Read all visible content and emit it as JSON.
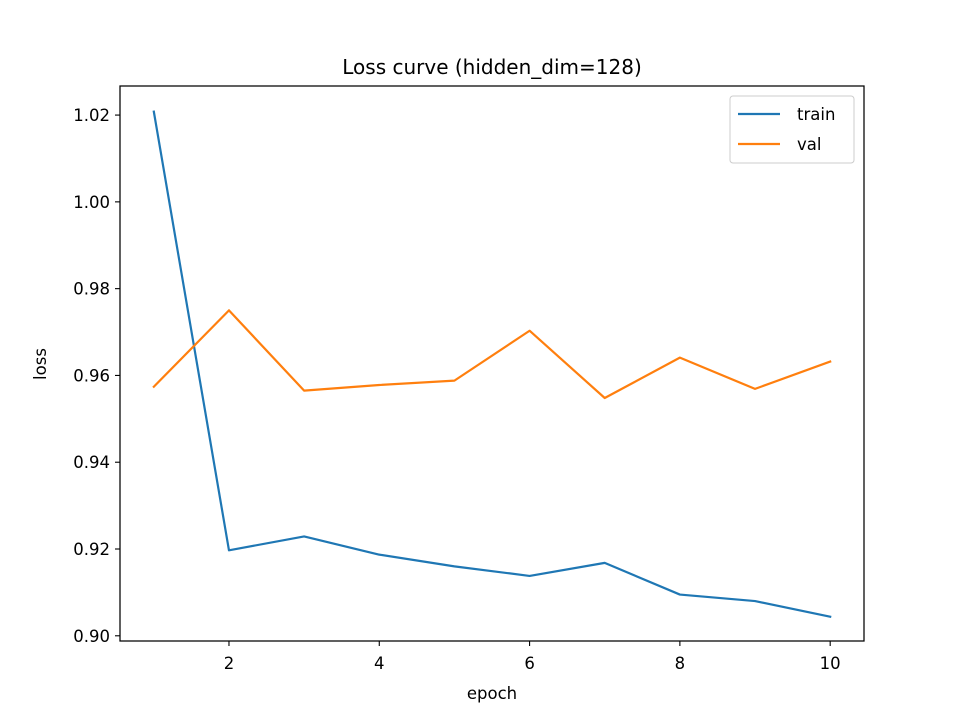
{
  "chart_data": {
    "type": "line",
    "title": "Loss curve (hidden_dim=128)",
    "xlabel": "epoch",
    "ylabel": "loss",
    "x": [
      1,
      2,
      3,
      4,
      5,
      6,
      7,
      8,
      9,
      10
    ],
    "xlim": [
      0.55,
      10.45
    ],
    "ylim": [
      0.8988,
      1.0267
    ],
    "xticks": [
      2,
      4,
      6,
      8,
      10
    ],
    "xtick_labels": [
      "2",
      "4",
      "6",
      "8",
      "10"
    ],
    "yticks": [
      0.9,
      0.92,
      0.94,
      0.96,
      0.98,
      1.0,
      1.02
    ],
    "ytick_labels": [
      "0.90",
      "0.92",
      "0.94",
      "0.96",
      "0.98",
      "1.00",
      "1.02"
    ],
    "grid": false,
    "legend_position": "top-right",
    "series": [
      {
        "name": "train",
        "color": "#1f77b4",
        "values": [
          1.0208,
          0.9197,
          0.9229,
          0.9187,
          0.916,
          0.9138,
          0.9168,
          0.9095,
          0.908,
          0.9044
        ]
      },
      {
        "name": "val",
        "color": "#ff7f0e",
        "values": [
          0.9574,
          0.975,
          0.9565,
          0.9578,
          0.9588,
          0.9703,
          0.9548,
          0.9641,
          0.9569,
          0.9632
        ]
      }
    ]
  }
}
